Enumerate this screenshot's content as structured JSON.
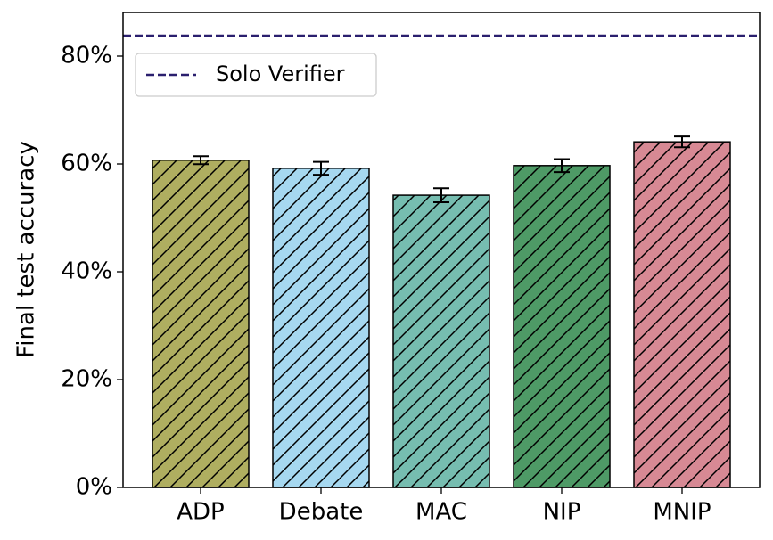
{
  "chart_data": {
    "type": "bar",
    "y_label": "Final test accuracy",
    "categories": [
      "ADP",
      "Debate",
      "MAC",
      "NIP",
      "MNIP"
    ],
    "values": [
      60.7,
      59.2,
      54.2,
      59.7,
      64.1
    ],
    "errors": [
      0.75,
      1.2,
      1.3,
      1.2,
      1.0
    ],
    "colors": [
      "#afae60",
      "#a6d8f0",
      "#76bdb0",
      "#4e9a66",
      "#d78994"
    ],
    "hatch": "/",
    "hlines": [
      {
        "name": "Solo Verifier",
        "value": 83.8,
        "color": "#2a1f6e",
        "style": "dashed"
      }
    ],
    "legend": "upper left",
    "ylim": [
      0,
      88.1
    ],
    "yticks": [
      {
        "value": 0,
        "label": "0%"
      },
      {
        "value": 20,
        "label": "20%"
      },
      {
        "value": 40,
        "label": "40%"
      },
      {
        "value": 60,
        "label": "60%"
      },
      {
        "value": 80,
        "label": "80%"
      }
    ]
  }
}
